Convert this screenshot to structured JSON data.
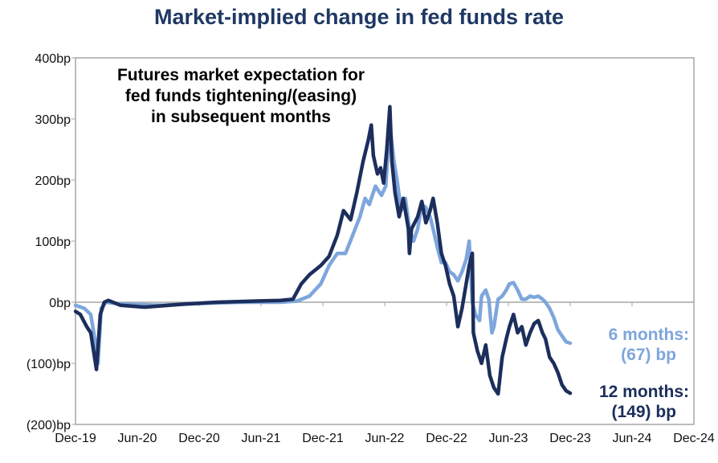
{
  "chart_data": {
    "type": "line",
    "title": "Market-implied change in fed funds rate",
    "annotation": [
      "Futures market expectation for",
      "fed funds tightening/(easing)",
      "in subsequent months"
    ],
    "x_units": "months since Dec-19",
    "x_ticks": [
      "Dec-19",
      "Jun-20",
      "Dec-20",
      "Jun-21",
      "Dec-21",
      "Jun-22",
      "Dec-22",
      "Jun-23",
      "Dec-23",
      "Jun-24",
      "Dec-24"
    ],
    "xlim": [
      0,
      60
    ],
    "y_ticks": [
      "400bp",
      "300bp",
      "200bp",
      "100bp",
      "0bp",
      "(100)bp",
      "(200)bp"
    ],
    "ylim": [
      -200,
      400
    ],
    "series": [
      {
        "name": "12 months",
        "color": "#1c2e5c",
        "label": [
          "12 months:",
          "(149) bp"
        ],
        "points": [
          [
            0,
            -15
          ],
          [
            0.47,
            -20
          ],
          [
            1.09,
            -40
          ],
          [
            1.48,
            -50
          ],
          [
            2.03,
            -110
          ],
          [
            2.41,
            -20
          ],
          [
            2.8,
            0
          ],
          [
            3.19,
            3
          ],
          [
            4.36,
            -5
          ],
          [
            6.7,
            -8
          ],
          [
            10.6,
            -3
          ],
          [
            13.7,
            0
          ],
          [
            17.6,
            2
          ],
          [
            19.9,
            3
          ],
          [
            21.1,
            5
          ],
          [
            21.9,
            30
          ],
          [
            22.7,
            45
          ],
          [
            23.8,
            60
          ],
          [
            24.6,
            75
          ],
          [
            25.4,
            110
          ],
          [
            26.0,
            150
          ],
          [
            26.7,
            135
          ],
          [
            27.3,
            180
          ],
          [
            27.9,
            230
          ],
          [
            28.4,
            265
          ],
          [
            28.7,
            290
          ],
          [
            28.9,
            240
          ],
          [
            29.3,
            210
          ],
          [
            29.6,
            220
          ],
          [
            29.9,
            195
          ],
          [
            30.2,
            250
          ],
          [
            30.5,
            320
          ],
          [
            30.7,
            230
          ],
          [
            31.0,
            180
          ],
          [
            31.4,
            140
          ],
          [
            31.8,
            170
          ],
          [
            32.3,
            120
          ],
          [
            32.4,
            80
          ],
          [
            32.6,
            120
          ],
          [
            33.2,
            140
          ],
          [
            33.6,
            165
          ],
          [
            34.0,
            130
          ],
          [
            34.4,
            150
          ],
          [
            34.7,
            170
          ],
          [
            35.1,
            130
          ],
          [
            35.5,
            80
          ],
          [
            35.9,
            60
          ],
          [
            36.3,
            30
          ],
          [
            36.7,
            10
          ],
          [
            37.1,
            -40
          ],
          [
            37.5,
            -10
          ],
          [
            37.9,
            30
          ],
          [
            38.2,
            60
          ],
          [
            38.5,
            80
          ],
          [
            38.6,
            -50
          ],
          [
            39.0,
            -80
          ],
          [
            39.4,
            -100
          ],
          [
            39.8,
            -70
          ],
          [
            40.2,
            -120
          ],
          [
            40.6,
            -140
          ],
          [
            41.0,
            -150
          ],
          [
            41.4,
            -90
          ],
          [
            41.8,
            -60
          ],
          [
            42.1,
            -40
          ],
          [
            42.5,
            -20
          ],
          [
            42.9,
            -50
          ],
          [
            43.3,
            -40
          ],
          [
            43.7,
            -70
          ],
          [
            44.1,
            -50
          ],
          [
            44.5,
            -35
          ],
          [
            44.9,
            -30
          ],
          [
            45.3,
            -50
          ],
          [
            45.6,
            -60
          ],
          [
            46.0,
            -90
          ],
          [
            46.4,
            -100
          ],
          [
            46.8,
            -115
          ],
          [
            47.2,
            -135
          ],
          [
            47.6,
            -145
          ],
          [
            48.0,
            -149
          ]
        ]
      },
      {
        "name": "6 months",
        "color": "#7ea6dc",
        "label": [
          "6 months:",
          "(67) bp"
        ],
        "points": [
          [
            0,
            -5
          ],
          [
            0.86,
            -10
          ],
          [
            1.48,
            -20
          ],
          [
            1.87,
            -60
          ],
          [
            2.18,
            -100
          ],
          [
            2.49,
            -10
          ],
          [
            2.96,
            0
          ],
          [
            4.36,
            -3
          ],
          [
            8.26,
            -5
          ],
          [
            12.2,
            -2
          ],
          [
            16.1,
            0
          ],
          [
            19.9,
            0
          ],
          [
            21.5,
            2
          ],
          [
            22.7,
            10
          ],
          [
            23.8,
            30
          ],
          [
            24.6,
            60
          ],
          [
            25.4,
            80
          ],
          [
            26.2,
            80
          ],
          [
            26.9,
            110
          ],
          [
            27.6,
            140
          ],
          [
            28.1,
            170
          ],
          [
            28.5,
            160
          ],
          [
            29.1,
            190
          ],
          [
            29.7,
            175
          ],
          [
            30.1,
            190
          ],
          [
            30.5,
            290
          ],
          [
            30.9,
            230
          ],
          [
            31.2,
            200
          ],
          [
            31.6,
            150
          ],
          [
            32.0,
            170
          ],
          [
            32.4,
            120
          ],
          [
            32.8,
            100
          ],
          [
            33.2,
            120
          ],
          [
            33.6,
            160
          ],
          [
            34.0,
            155
          ],
          [
            34.4,
            140
          ],
          [
            34.7,
            120
          ],
          [
            35.1,
            90
          ],
          [
            35.5,
            65
          ],
          [
            35.9,
            65
          ],
          [
            36.3,
            50
          ],
          [
            36.7,
            45
          ],
          [
            37.1,
            35
          ],
          [
            37.5,
            50
          ],
          [
            37.9,
            70
          ],
          [
            38.2,
            100
          ],
          [
            38.5,
            0
          ],
          [
            38.8,
            -20
          ],
          [
            39.2,
            -30
          ],
          [
            39.4,
            10
          ],
          [
            39.8,
            20
          ],
          [
            40.1,
            5
          ],
          [
            40.4,
            -50
          ],
          [
            40.6,
            -40
          ],
          [
            41.0,
            5
          ],
          [
            41.4,
            10
          ],
          [
            41.8,
            20
          ],
          [
            42.1,
            30
          ],
          [
            42.5,
            32
          ],
          [
            42.9,
            20
          ],
          [
            43.3,
            5
          ],
          [
            43.7,
            5
          ],
          [
            44.1,
            10
          ],
          [
            44.5,
            8
          ],
          [
            44.9,
            10
          ],
          [
            45.3,
            5
          ],
          [
            45.6,
            0
          ],
          [
            46.0,
            -10
          ],
          [
            46.4,
            -25
          ],
          [
            46.8,
            -45
          ],
          [
            47.2,
            -55
          ],
          [
            47.6,
            -65
          ],
          [
            48.0,
            -67
          ]
        ]
      }
    ]
  }
}
